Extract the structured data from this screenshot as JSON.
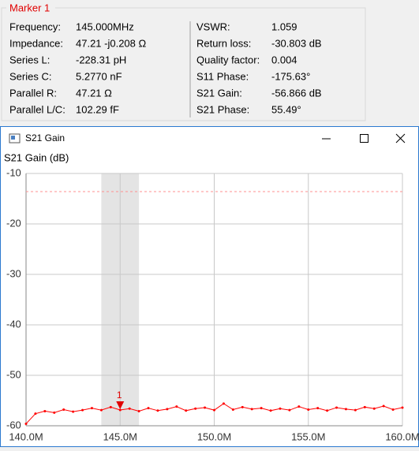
{
  "marker_panel": {
    "title": "Marker 1",
    "left": [
      {
        "label": "Frequency:",
        "value": "145.000MHz"
      },
      {
        "label": "Impedance:",
        "value": "47.21 -j0.208 Ω"
      },
      {
        "label": "Series L:",
        "value": "-228.31 pH"
      },
      {
        "label": "Series C:",
        "value": "5.2770 nF"
      },
      {
        "label": "Parallel R:",
        "value": "47.21 Ω"
      },
      {
        "label": "Parallel L/C:",
        "value": "102.29 fF"
      }
    ],
    "right": [
      {
        "label": "VSWR:",
        "value": "1.059"
      },
      {
        "label": "Return loss:",
        "value": "-30.803 dB"
      },
      {
        "label": "Quality factor:",
        "value": "0.004"
      },
      {
        "label": "S11 Phase:",
        "value": "-175.63°"
      },
      {
        "label": "S21 Gain:",
        "value": "-56.866 dB"
      },
      {
        "label": "S21 Phase:",
        "value": "55.49°"
      }
    ]
  },
  "window": {
    "title": "S21 Gain"
  },
  "chart_data": {
    "type": "line",
    "y_label": "S21 Gain (dB)",
    "x": [
      140,
      140.5,
      141,
      141.5,
      142,
      142.5,
      143,
      143.5,
      144,
      144.5,
      145,
      145.5,
      146,
      146.5,
      147,
      147.5,
      148,
      148.5,
      149,
      149.5,
      150,
      150.5,
      151,
      151.5,
      152,
      152.5,
      153,
      153.5,
      154,
      154.5,
      155,
      155.5,
      156,
      156.5,
      157,
      157.5,
      158,
      158.5,
      159,
      159.5,
      160
    ],
    "series": [
      {
        "name": "S21 Gain",
        "color": "#ff0000",
        "values": [
          -59.6,
          -57.6,
          -57.1,
          -57.4,
          -56.8,
          -57.2,
          -56.9,
          -56.5,
          -56.9,
          -56.3,
          -56.866,
          -56.6,
          -57.1,
          -56.5,
          -57.0,
          -56.7,
          -56.2,
          -57.0,
          -56.6,
          -56.4,
          -56.9,
          -55.6,
          -56.8,
          -56.3,
          -56.7,
          -56.5,
          -57.0,
          -56.6,
          -56.9,
          -56.2,
          -56.8,
          -56.5,
          -57.0,
          -56.4,
          -56.7,
          -56.9,
          -56.3,
          -56.6,
          -56.1,
          -56.8,
          -56.4
        ]
      }
    ],
    "xlim": [
      140,
      160
    ],
    "xticks": [
      {
        "value": 140,
        "label": "140.0M"
      },
      {
        "value": 145,
        "label": "145.0M"
      },
      {
        "value": 150,
        "label": "150.0M"
      },
      {
        "value": 155,
        "label": "155.0M"
      },
      {
        "value": 160,
        "label": "160.0M"
      }
    ],
    "ylim": [
      -60,
      -10
    ],
    "yticks": [
      -10,
      -20,
      -30,
      -40,
      -50,
      -60
    ],
    "grid": true,
    "max_line": -13.6,
    "highlight": [
      144,
      146
    ],
    "marker": {
      "label": "1",
      "x": 145,
      "value": -56.866
    }
  }
}
